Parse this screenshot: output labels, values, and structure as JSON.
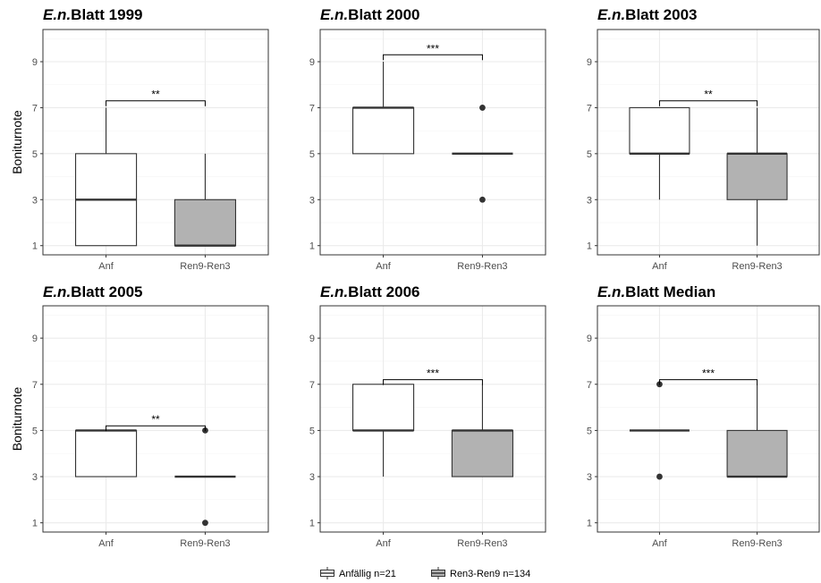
{
  "chart_data": [
    {
      "type": "box",
      "title_italic": "E.n.",
      "title_rest": "Blatt 1999",
      "ylabel": "Boniturnote",
      "yticks": [
        1,
        3,
        5,
        7,
        9
      ],
      "ylim": [
        0.6,
        10.4
      ],
      "categories": [
        "Anf",
        "Ren9-Ren3"
      ],
      "boxes": [
        {
          "category": "Anf",
          "group": "Anfällig",
          "q1": 1,
          "median": 3,
          "q3": 5,
          "whisker_low": 1,
          "whisker_high": 7,
          "outliers": []
        },
        {
          "category": "Ren9-Ren3",
          "group": "Ren3-Ren9",
          "q1": 1,
          "median": 1,
          "q3": 3,
          "whisker_low": 1,
          "whisker_high": 5,
          "outliers": []
        }
      ],
      "significance": {
        "label": "**",
        "y": 7.3
      }
    },
    {
      "type": "box",
      "title_italic": "E.n.",
      "title_rest": "Blatt 2000",
      "ylabel": "",
      "yticks": [
        1,
        3,
        5,
        7,
        9
      ],
      "ylim": [
        0.6,
        10.4
      ],
      "categories": [
        "Anf",
        "Ren9-Ren3"
      ],
      "boxes": [
        {
          "category": "Anf",
          "group": "Anfällig",
          "q1": 5,
          "median": 7,
          "q3": 7,
          "whisker_low": 5,
          "whisker_high": 9,
          "outliers": []
        },
        {
          "category": "Ren9-Ren3",
          "group": "Ren3-Ren9",
          "q1": 5,
          "median": 5,
          "q3": 5,
          "whisker_low": 5,
          "whisker_high": 5,
          "outliers": [
            7,
            3
          ]
        }
      ],
      "significance": {
        "label": "***",
        "y": 9.3
      }
    },
    {
      "type": "box",
      "title_italic": "E.n.",
      "title_rest": "Blatt 2003",
      "ylabel": "",
      "yticks": [
        1,
        3,
        5,
        7,
        9
      ],
      "ylim": [
        0.6,
        10.4
      ],
      "categories": [
        "Anf",
        "Ren9-Ren3"
      ],
      "boxes": [
        {
          "category": "Anf",
          "group": "Anfällig",
          "q1": 5,
          "median": 5,
          "q3": 7,
          "whisker_low": 3,
          "whisker_high": 7,
          "outliers": []
        },
        {
          "category": "Ren9-Ren3",
          "group": "Ren3-Ren9",
          "q1": 3,
          "median": 5,
          "q3": 5,
          "whisker_low": 1,
          "whisker_high": 7,
          "outliers": []
        }
      ],
      "significance": {
        "label": "**",
        "y": 7.3
      }
    },
    {
      "type": "box",
      "title_italic": "E.n.",
      "title_rest": "Blatt 2005",
      "ylabel": "Boniturnote",
      "yticks": [
        1,
        3,
        5,
        7,
        9
      ],
      "ylim": [
        0.6,
        10.4
      ],
      "categories": [
        "Anf",
        "Ren9-Ren3"
      ],
      "boxes": [
        {
          "category": "Anf",
          "group": "Anfällig",
          "q1": 3,
          "median": 5,
          "q3": 5,
          "whisker_low": 3,
          "whisker_high": 5,
          "outliers": []
        },
        {
          "category": "Ren9-Ren3",
          "group": "Ren3-Ren9",
          "q1": 3,
          "median": 3,
          "q3": 3,
          "whisker_low": 3,
          "whisker_high": 3,
          "outliers": [
            5,
            1
          ]
        }
      ],
      "significance": {
        "label": "**",
        "y": 5.2
      }
    },
    {
      "type": "box",
      "title_italic": "E.n.",
      "title_rest": "Blatt 2006",
      "ylabel": "",
      "yticks": [
        1,
        3,
        5,
        7,
        9
      ],
      "ylim": [
        0.6,
        10.4
      ],
      "categories": [
        "Anf",
        "Ren9-Ren3"
      ],
      "boxes": [
        {
          "category": "Anf",
          "group": "Anfällig",
          "q1": 5,
          "median": 5,
          "q3": 7,
          "whisker_low": 3,
          "whisker_high": 7,
          "outliers": []
        },
        {
          "category": "Ren9-Ren3",
          "group": "Ren3-Ren9",
          "q1": 3,
          "median": 5,
          "q3": 5,
          "whisker_low": 3,
          "whisker_high": 7,
          "outliers": []
        }
      ],
      "significance": {
        "label": "***",
        "y": 7.2
      }
    },
    {
      "type": "box",
      "title_italic": "E.n.",
      "title_rest": "Blatt Median",
      "ylabel": "",
      "yticks": [
        1,
        3,
        5,
        7,
        9
      ],
      "ylim": [
        0.6,
        10.4
      ],
      "categories": [
        "Anf",
        "Ren9-Ren3"
      ],
      "boxes": [
        {
          "category": "Anf",
          "group": "Anfällig",
          "q1": 5,
          "median": 5,
          "q3": 5,
          "whisker_low": 5,
          "whisker_high": 5,
          "outliers": [
            7,
            3
          ]
        },
        {
          "category": "Ren9-Ren3",
          "group": "Ren3-Ren9",
          "q1": 3,
          "median": 3,
          "q3": 5,
          "whisker_low": 3,
          "whisker_high": 7,
          "outliers": []
        }
      ],
      "significance": {
        "label": "***",
        "y": 7.2
      }
    }
  ],
  "legend": {
    "position": "bottom",
    "items": [
      {
        "label": "Anfällig n=21",
        "fill": "#ffffff"
      },
      {
        "label": "Ren3-Ren9 n=134",
        "fill": "#b2b2b2"
      }
    ]
  },
  "colors": {
    "anf_fill": "#ffffff",
    "ren_fill": "#b2b2b2",
    "outline": "#333333",
    "grid_major": "#ebebeb",
    "grid_minor": "#f5f5f5",
    "panel_border": "#333333"
  }
}
